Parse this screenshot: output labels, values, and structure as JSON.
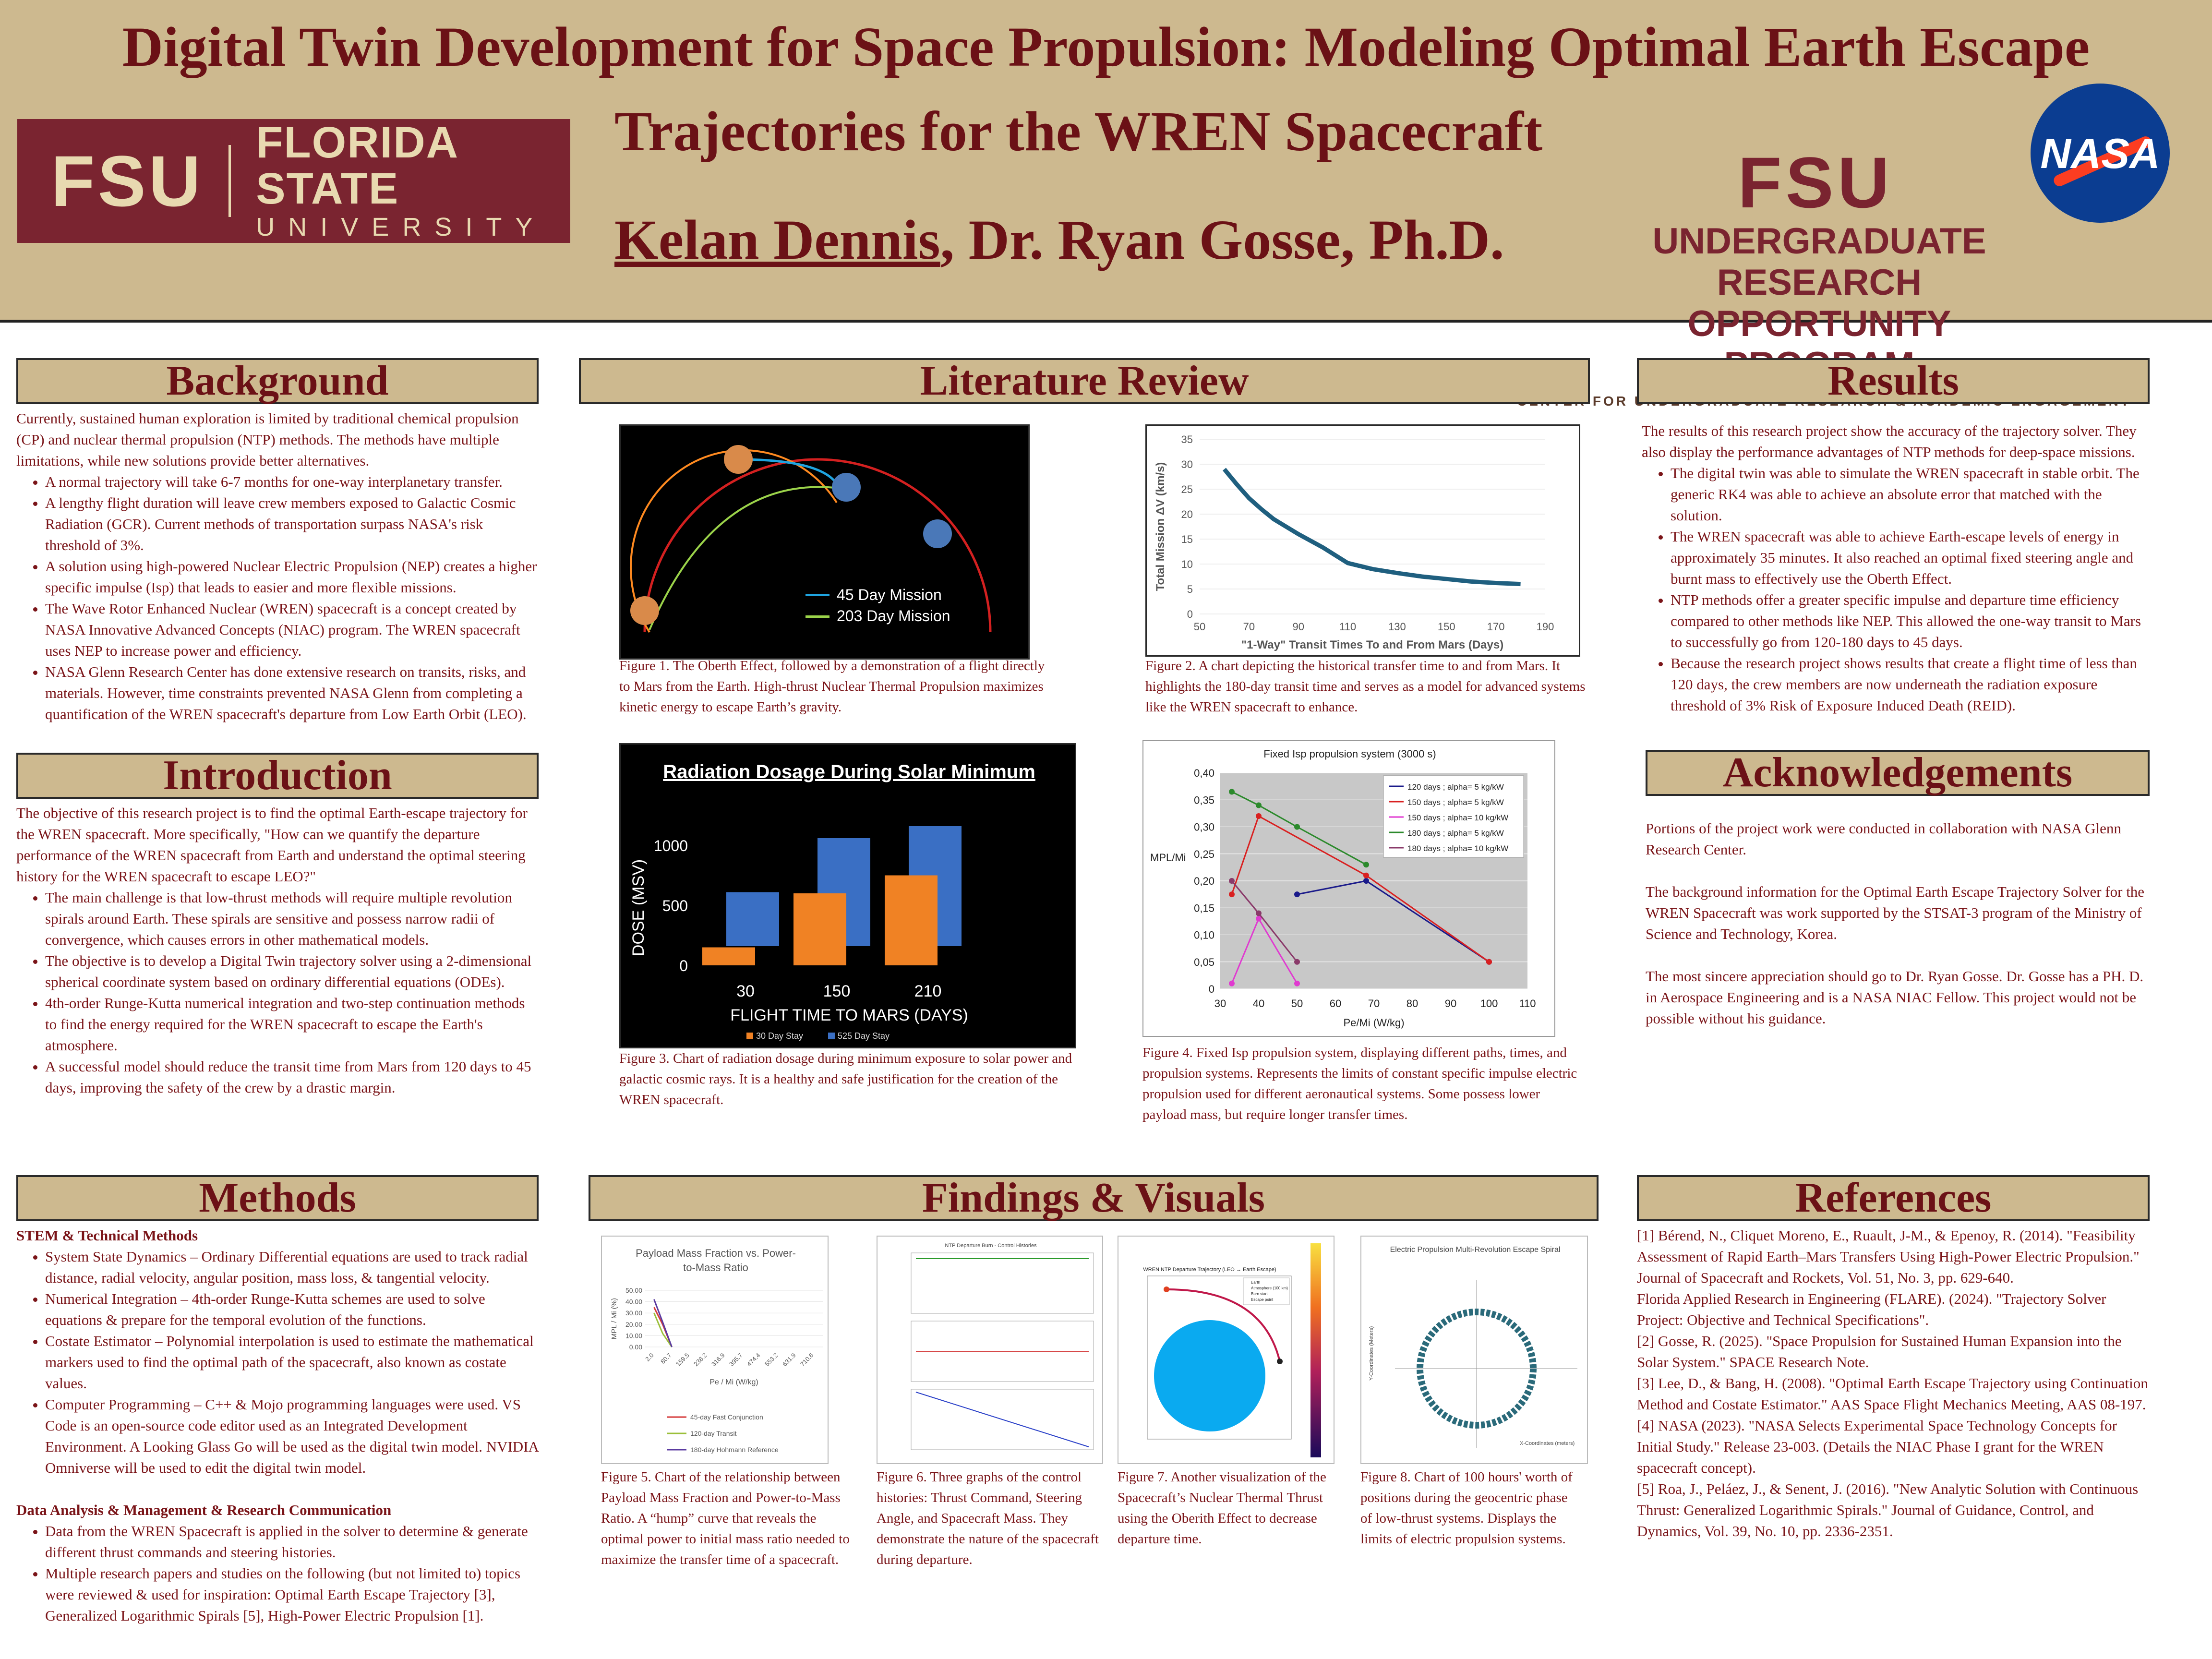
{
  "header": {
    "title_line1": "Digital Twin Development for Space Propulsion: Modeling Optimal Earth Escape",
    "title_line2": "Trajectories for the WREN Spacecraft",
    "author_main": "Kelan Dennis",
    "authors_rest": ", Dr. Ryan Gosse, Ph.D.",
    "fsu_monogram": "FSU",
    "fsu_name": "FLORIDA STATE",
    "fsu_university": "UNIVERSITY",
    "urop_monogram": "FSU",
    "urop_line1": "UNDERGRADUATE RESEARCH",
    "urop_line2": "OPPORTUNITY PROGRAM",
    "urop_line3": "CENTER FOR UNDERGRADUATE RESEARCH & ACADEMIC ENGAGEMENT",
    "nasa_logo": "NASA"
  },
  "background": {
    "heading": "Background",
    "intro": "Currently, sustained human exploration is limited by traditional chemical propulsion (CP) and nuclear thermal propulsion (NTP) methods. The methods have multiple limitations, while new solutions provide better alternatives.",
    "bullets": [
      "A normal trajectory will take 6-7 months for one-way interplanetary transfer.",
      "A lengthy flight duration will leave crew members exposed to Galactic Cosmic Radiation (GCR). Current methods of transportation surpass NASA's risk threshold of 3%.",
      "A solution using high-powered Nuclear Electric Propulsion (NEP) creates a higher specific impulse (Isp) that leads to easier and more flexible missions.",
      "The Wave Rotor Enhanced Nuclear (WREN) spacecraft is a concept created by NASA Innovative Advanced Concepts (NIAC) program. The WREN spacecraft uses NEP to increase power and efficiency.",
      "NASA Glenn Research Center has done extensive research on transits, risks, and materials. However, time constraints prevented NASA Glenn from completing a quantification of the WREN spacecraft's departure from Low Earth Orbit (LEO)."
    ]
  },
  "introduction": {
    "heading": "Introduction",
    "intro": "The objective of this research project is to find the optimal Earth-escape trajectory for the WREN spacecraft. More specifically, \"How can we quantify the departure performance of the WREN spacecraft from Earth and understand the optimal steering history for the WREN spacecraft to escape LEO?\"",
    "bullets": [
      "The main challenge is that low-thrust methods will require multiple revolution spirals around Earth. These spirals are sensitive and possess narrow radii of convergence, which causes errors in other mathematical models.",
      "The objective is to develop a Digital Twin trajectory solver using a 2-dimensional spherical coordinate system based on ordinary differential equations (ODEs).",
      "4th-order Runge-Kutta numerical integration and two-step continuation methods to find the energy required for the WREN spacecraft to escape the Earth's atmosphere.",
      "A successful model should reduce the transit time from Mars from 120 days to 45 days, improving the safety of the crew by a drastic margin."
    ]
  },
  "methods": {
    "heading": "Methods",
    "sub1": "STEM & Technical Methods",
    "bullets1": [
      "System State Dynamics – Ordinary Differential equations are used to track radial distance, radial velocity, angular position, mass loss, & tangential velocity.",
      "Numerical Integration – 4th-order Runge-Kutta schemes are used to solve equations & prepare for the temporal evolution of the functions.",
      "Costate Estimator – Polynomial interpolation is used to estimate the mathematical markers used to find the optimal path of the spacecraft, also known as costate values.",
      "Computer Programming – C++ & Mojo programming languages were used. VS Code is an open-source code editor used as an Integrated Development Environment. A Looking Glass Go will be used as the digital twin model. NVIDIA Omniverse will be used to edit the digital twin model."
    ],
    "sub2": "Data Analysis & Management & Research Communication",
    "bullets2": [
      "Data from the WREN Spacecraft is applied in the solver to determine & generate different thrust commands and steering histories.",
      "Multiple research papers and studies on the following (but not limited to) topics were reviewed & used for inspiration: Optimal Earth Escape Trajectory [3], Generalized Logarithmic Spirals [5], High-Power Electric Propulsion [1]."
    ]
  },
  "literature": {
    "heading": "Literature Review",
    "fig1": {
      "legend": [
        "45 Day Mission",
        "203 Day Mission"
      ],
      "legend_colors": [
        "#1fa4e0",
        "#9bd34a"
      ],
      "caption": "Figure 1. The Oberth Effect, followed by a demonstration of a flight directly to Mars from the Earth. High-thrust Nuclear Thermal Propulsion maximizes kinetic energy to escape Earth’s gravity."
    },
    "fig2": {
      "caption": "Figure 2. A chart depicting the historical transfer time to and from Mars. It highlights the 180-day transit time and serves as a model for advanced systems like the WREN spacecraft to enhance."
    },
    "fig3": {
      "caption": "Figure 3. Chart of radiation dosage during minimum exposure to solar power and galactic cosmic rays. It is a healthy and safe justification for the creation of the WREN spacecraft."
    },
    "fig4": {
      "caption": "Figure 4. Fixed Isp propulsion system, displaying different paths, times, and propulsion systems. Represents the limits of constant specific impulse electric propulsion used for different aeronautical systems. Some possess lower payload mass, but require longer transfer times."
    }
  },
  "chart_data": [
    {
      "type": "line",
      "xlabel": "\"1-Way\" Transit Times To and From Mars (Days)",
      "ylabel": "Total Mission ΔV (km/s)",
      "xticks": [
        50,
        70,
        90,
        110,
        130,
        150,
        170,
        190
      ],
      "yticks": [
        0,
        5,
        10,
        15,
        20,
        25,
        30,
        35
      ],
      "xlim": [
        50,
        190
      ],
      "ylim": [
        0,
        35
      ],
      "series": [
        {
          "color": "#1f5f7f",
          "x": [
            60,
            65,
            70,
            75,
            80,
            90,
            100,
            110,
            120,
            130,
            140,
            150,
            160,
            170,
            180
          ],
          "y": [
            29,
            26,
            23.2,
            21,
            19,
            16,
            13.3,
            10.2,
            9,
            8.2,
            7.5,
            7,
            6.5,
            6.2,
            6
          ]
        }
      ]
    },
    {
      "type": "bar",
      "title": "Radiation Dosage During Solar Minimum",
      "xlabel": "FLIGHT TIME TO MARS (DAYS)",
      "ylabel": "DOSE (MSV)",
      "categories": [
        "30",
        "150",
        "210"
      ],
      "yticks": [
        0,
        500,
        1000
      ],
      "series": [
        {
          "name": "30 Day Stay",
          "color": "#f08224",
          "values": [
            150,
            600,
            750
          ]
        },
        {
          "name": "525 Day Stay",
          "color": "#3a6fc4",
          "values": [
            450,
            900,
            1000
          ]
        }
      ]
    },
    {
      "type": "line",
      "title": "Fixed Isp propulsion system (3000 s)",
      "xlabel": "Pe/Mi (W/kg)",
      "ylabel": "MPL/Mi",
      "xticks": [
        30,
        40,
        50,
        60,
        70,
        80,
        90,
        100,
        110
      ],
      "yticks": [
        "0",
        "0,05",
        "0,10",
        "0,15",
        "0,20",
        "0,25",
        "0,30",
        "0,35",
        "0,40"
      ],
      "xlim": [
        30,
        110
      ],
      "ylim": [
        0,
        0.4
      ],
      "series": [
        {
          "name": "120 days ; alpha= 5 kg/kW",
          "color": "#1a1a8a",
          "x": [
            50,
            68,
            100
          ],
          "y": [
            0.175,
            0.2,
            0.05
          ]
        },
        {
          "name": "150 days ; alpha= 5 kg/kW",
          "color": "#d92020",
          "x": [
            33,
            40,
            68,
            100
          ],
          "y": [
            0.175,
            0.32,
            0.21,
            0.05
          ]
        },
        {
          "name": "150 days ; alpha= 10 kg/kW",
          "color": "#e03ad0",
          "x": [
            33,
            40,
            50
          ],
          "y": [
            0.01,
            0.13,
            0.01
          ]
        },
        {
          "name": "180 days ; alpha= 5 kg/kW",
          "color": "#2c8a2c",
          "x": [
            33,
            40,
            50,
            68
          ],
          "y": [
            0.365,
            0.34,
            0.3,
            0.23
          ]
        },
        {
          "name": "180 days ; alpha= 10 kg/kW",
          "color": "#8a3a6a",
          "x": [
            33,
            40,
            50
          ],
          "y": [
            0.2,
            0.14,
            0.05
          ]
        }
      ]
    },
    {
      "type": "line",
      "title": "Payload Mass Fraction vs. Power-to-Mass Ratio",
      "xlabel": "Pe / Mi (W/kg)",
      "ylabel": "MPL / Mi (%)",
      "xticks": [
        "2.0",
        "80.7",
        "159.5",
        "238.2",
        "316.9",
        "395.7",
        "474.4",
        "553.2",
        "631.9",
        "710.6"
      ],
      "yticks": [
        "0.00",
        "10.00",
        "20.00",
        "30.00",
        "40.00",
        "50.00"
      ],
      "ylim": [
        0,
        50
      ],
      "series": [
        {
          "name": "45-day Fast Conjunction",
          "color": "#d43a3a",
          "x": [
            2,
            40,
            80.7
          ],
          "y": [
            35,
            20,
            0
          ]
        },
        {
          "name": "120-day Transit",
          "color": "#9bbf3a",
          "x": [
            2,
            40,
            80.7
          ],
          "y": [
            30,
            12,
            0
          ]
        },
        {
          "name": "180-day Hohmann Reference",
          "color": "#5a3aa0",
          "x": [
            2,
            40,
            80.7
          ],
          "y": [
            42,
            22,
            0
          ]
        }
      ]
    }
  ],
  "findings": {
    "heading": "Findings & Visuals",
    "fig5_caption": "Figure 5.  Chart of the relationship between Payload Mass Fraction and Power-to-Mass Ratio. A “hump” curve that reveals the optimal power to initial mass ratio needed to maximize the transfer time of a spacecraft.",
    "fig6_title": "NTP Departure Burn - Control Histories",
    "fig6_caption": "Figure 6. Three graphs of the control histories: Thrust Command, Steering Angle, and Spacecraft Mass. They demonstrate the nature of the spacecraft during departure.",
    "fig7_title": "WREN NTP Departure Trajectory (LEO → Earth Escape)",
    "fig7_legend": [
      "Earth",
      "Atmosphere (100 km)",
      "Burn start",
      "Escape point"
    ],
    "fig7_caption": "Figure 7. Another visualization of the Spacecraft’s Nuclear Thermal Thrust using the Oberith Effect to decrease departure time.",
    "fig8_title": "Electric Propulsion Multi-Revolution Escape Spiral",
    "fig8_xlabel": "X-Coordinates (meters)",
    "fig8_ylabel": "Y-Coordinates (Meters)",
    "fig8_caption": "Figure 8. Chart of 100 hours' worth of positions during the geocentric phase of low-thrust systems. Displays the limits of electric propulsion systems."
  },
  "results": {
    "heading": "Results",
    "intro": "The results of this research project show the accuracy of the trajectory solver. They also display the performance advantages of NTP methods for deep-space missions.",
    "bullets": [
      "The digital twin was able to simulate the WREN spacecraft in stable orbit. The generic RK4 was able to achieve an absolute error that matched with the solution.",
      "The WREN spacecraft was able to achieve Earth-escape levels of energy in approximately 35 minutes. It also reached an optimal fixed steering angle and burnt mass to effectively use the Oberth Effect.",
      "NTP methods offer a greater specific impulse and departure time efficiency compared to other methods like NEP. This allowed the one-way transit to Mars to successfully go from 120-180 days to 45 days.",
      "Because the research project shows results that create a flight time of less than 120 days, the crew members are now underneath the radiation exposure threshold of 3% Risk of Exposure Induced Death (REID)."
    ]
  },
  "acknowledgements": {
    "heading": "Acknowledgements",
    "p1": "Portions of the project work were conducted in collaboration with NASA Glenn Research Center.",
    "p2": "The background information for the Optimal Earth Escape Trajectory Solver for the WREN Spacecraft was work supported by the STSAT-3 program of the Ministry of Science and Technology, Korea.",
    "p3": "The most sincere appreciation should go to Dr. Ryan Gosse. Dr. Gosse has a PH. D. in Aerospace Engineering and is a NASA NIAC Fellow. This project would not be possible without his guidance."
  },
  "references": {
    "heading": "References",
    "items": [
      "[1] Bérend, N., Cliquet Moreno, E., Ruault, J-M., & Epenoy, R. (2014). \"Feasibility Assessment of Rapid Earth–Mars Transfers Using High-Power Electric Propulsion.\" Journal of Spacecraft and Rockets, Vol. 51, No. 3, pp. 629-640.",
      "Florida Applied Research in Engineering (FLARE). (2024). \"Trajectory Solver Project: Objective and Technical Specifications\".",
      "[2] Gosse, R. (2025). \"Space Propulsion for Sustained Human Expansion into the Solar System.\" SPACE Research Note.",
      "[3] Lee, D., & Bang, H. (2008). \"Optimal Earth Escape Trajectory using Continuation Method and Costate Estimator.\" AAS Space Flight Mechanics Meeting, AAS 08-197.",
      "[4] NASA (2023). \"NASA Selects Experimental Space Technology Concepts for Initial Study.\" Release 23-003. (Details the NIAC Phase I grant for the WREN spacecraft concept).",
      "[5] Roa, J., Peláez, J., & Senent, J. (2016). \"New Analytic Solution with Continuous Thrust: Generalized Logarithmic Spirals.\" Journal of Guidance, Control, and Dynamics, Vol. 39, No. 10, pp. 2336-2351."
    ]
  }
}
